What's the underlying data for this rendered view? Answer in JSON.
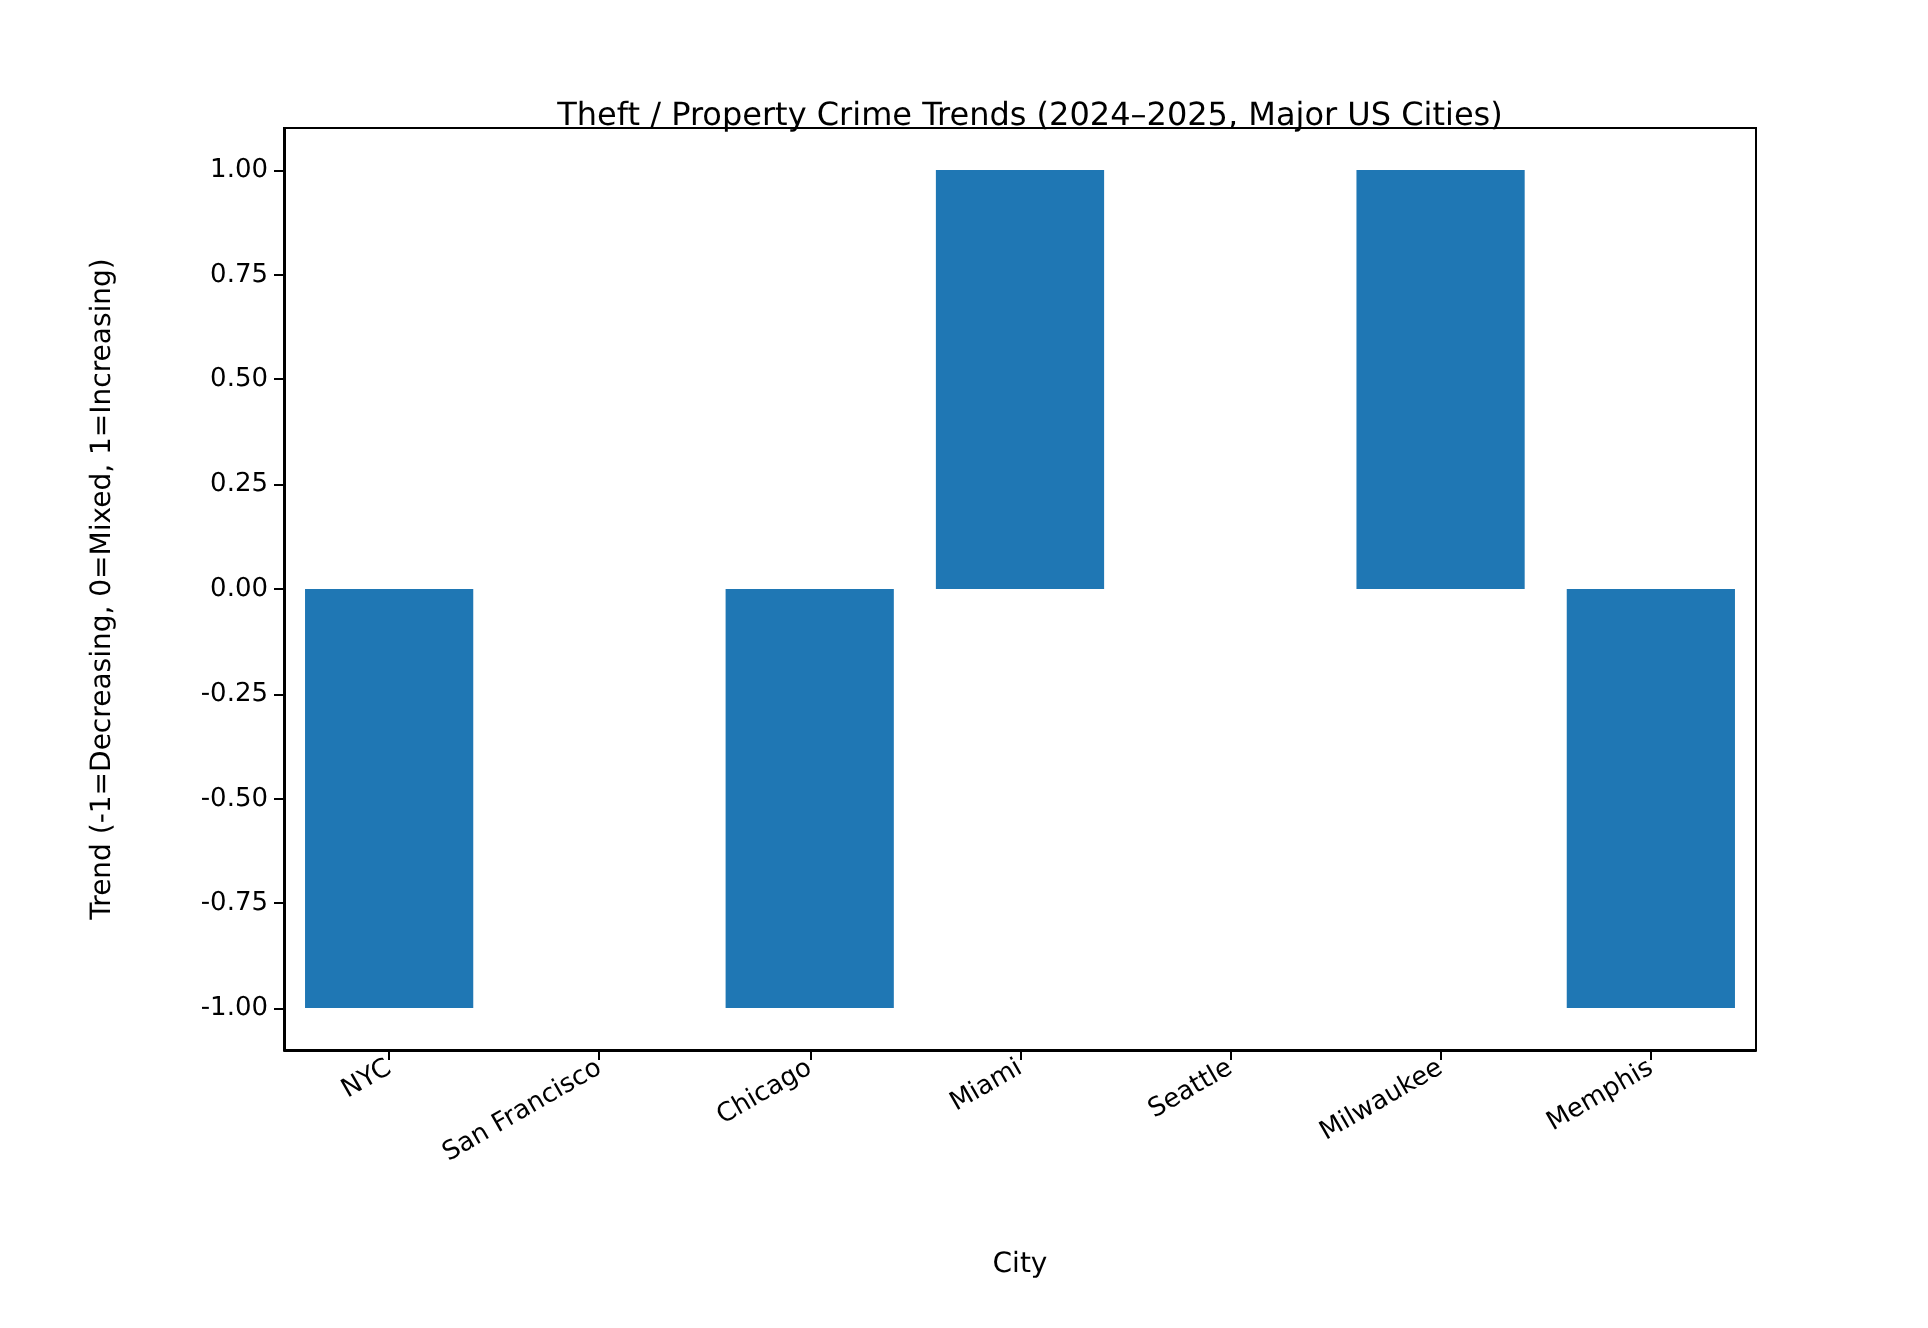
{
  "chart_data": {
    "type": "bar",
    "title": "Theft / Property Crime Trends (2024–2025, Major US Cities)",
    "xlabel": "City",
    "ylabel": "Trend (-1=Decreasing, 0=Mixed, 1=Increasing)",
    "categories": [
      "NYC",
      "San Francisco",
      "Chicago",
      "Miami",
      "Seattle",
      "Milwaukee",
      "Memphis"
    ],
    "values": [
      -1,
      0,
      -1,
      1,
      0,
      1,
      -1
    ],
    "color": "#1f77b4",
    "ylim": [
      -1.1,
      1.1
    ],
    "yticks": [
      {
        "value": -1,
        "label": "-1.00"
      },
      {
        "value": -0.75,
        "label": "-0.75"
      },
      {
        "value": -0.5,
        "label": "-0.50"
      },
      {
        "value": -0.25,
        "label": "-0.25"
      },
      {
        "value": 0,
        "label": "0.00"
      },
      {
        "value": 0.25,
        "label": "0.25"
      },
      {
        "value": 0.5,
        "label": "0.50"
      },
      {
        "value": 0.75,
        "label": "0.75"
      },
      {
        "value": 1,
        "label": "1.00"
      }
    ],
    "grid": false
  }
}
